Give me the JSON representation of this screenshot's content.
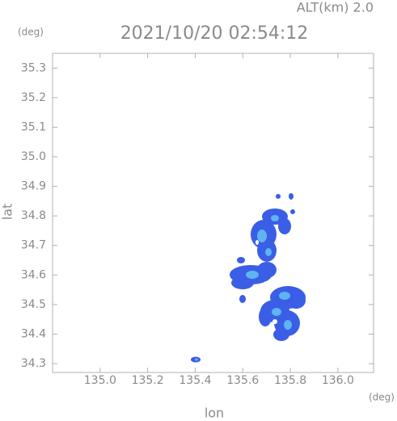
{
  "chart_data": {
    "type": "map",
    "title": "2021/10/20 02:54:12",
    "annotation": "ALT(km) 2.0",
    "xlabel": "lon",
    "ylabel": "lat",
    "x_unit": "(deg)",
    "y_unit": "(deg)",
    "xlim": [
      134.8,
      136.15
    ],
    "ylim": [
      34.27,
      35.35
    ],
    "xticks": [
      {
        "value": 135.0,
        "label": "135.0"
      },
      135.2,
      135.4,
      135.6,
      135.8,
      {
        "value": 136.0,
        "label": "136.0"
      }
    ],
    "yticks": [
      34.3,
      34.4,
      34.5,
      34.6,
      34.7,
      34.8,
      34.9,
      {
        "value": 35.0,
        "label": "35.0"
      },
      35.1,
      35.2,
      35.3
    ],
    "grid": false
  }
}
